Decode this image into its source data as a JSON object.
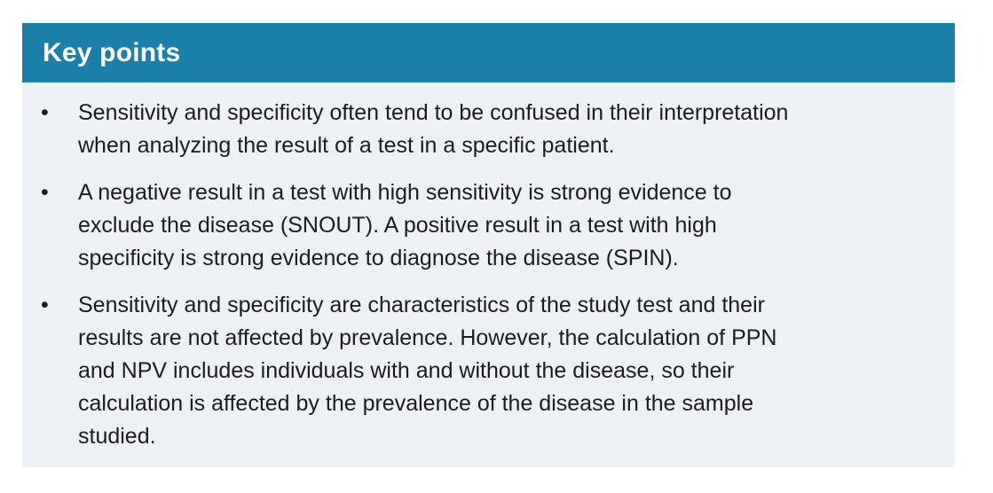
{
  "card": {
    "header": {
      "title": "Key points"
    },
    "bullet_glyph": "•",
    "items": [
      {
        "text": "Sensitivity and specificity often tend to be confused in their interpretation\nwhen analyzing the result of a test in a specific patient."
      },
      {
        "text": "A negative result in a test with high sensitivity is strong evidence to\nexclude the disease (SNOUT). A positive result in a test with high\nspecificity is strong evidence to diagnose the disease (SPIN)."
      },
      {
        "text": "Sensitivity and specificity are characteristics of the study test and their\nresults are not affected by prevalence. However, the calculation of PPN\nand NPV includes individuals with and without the disease, so their\ncalculation is affected by the prevalence of the disease in the sample\nstudied."
      }
    ],
    "colors": {
      "header_bg": "#1A7FA9",
      "header_text": "#FFFFFF",
      "body_bg": "#EDF1F6",
      "body_text": "#1C1C1C",
      "page_bg": "#FFFFFF"
    }
  }
}
